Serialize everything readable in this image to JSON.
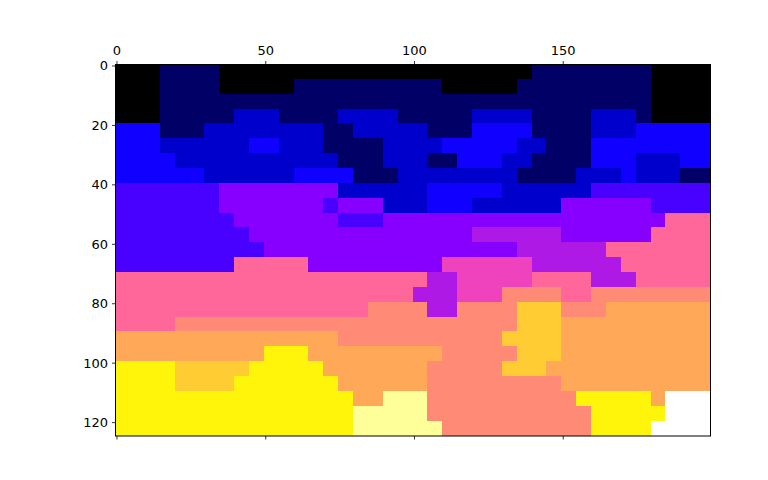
{
  "chart_data": {
    "type": "heatmap",
    "color": "gnuplot2",
    "xlim": [
      -0.5,
      199.5
    ],
    "ylim": [
      124.5,
      -0.5
    ],
    "xticks": [
      0,
      50,
      100,
      150
    ],
    "yticks": [
      0,
      20,
      40,
      60,
      80,
      100,
      120
    ],
    "color_range": [
      0,
      100
    ],
    "cells": [
      [
        0,
        0,
        0,
        10,
        10,
        10,
        10,
        0,
        0,
        0,
        0,
        0,
        0,
        0,
        0,
        0,
        0,
        0,
        0,
        0,
        0,
        0,
        0,
        0,
        0,
        0,
        0,
        0,
        10,
        10,
        10,
        10,
        10,
        10,
        10,
        10,
        0,
        0,
        0,
        0
      ],
      [
        0,
        0,
        0,
        10,
        10,
        10,
        10,
        0,
        0,
        0,
        0,
        0,
        10,
        10,
        10,
        10,
        10,
        10,
        10,
        10,
        10,
        10,
        0,
        0,
        0,
        0,
        0,
        10,
        10,
        10,
        10,
        10,
        10,
        10,
        10,
        10,
        0,
        0,
        0,
        0
      ],
      [
        0,
        0,
        0,
        10,
        10,
        10,
        10,
        10,
        10,
        10,
        10,
        10,
        10,
        10,
        10,
        10,
        10,
        10,
        10,
        10,
        10,
        10,
        10,
        10,
        10,
        10,
        10,
        10,
        10,
        10,
        10,
        10,
        10,
        10,
        10,
        10,
        0,
        0,
        0,
        0
      ],
      [
        0,
        0,
        0,
        10,
        10,
        10,
        10,
        10,
        20,
        20,
        20,
        10,
        10,
        10,
        10,
        20,
        20,
        20,
        20,
        10,
        10,
        10,
        10,
        10,
        20,
        20,
        20,
        20,
        10,
        10,
        10,
        10,
        20,
        20,
        20,
        10,
        0,
        0,
        0,
        0
      ],
      [
        27,
        27,
        27,
        10,
        10,
        10,
        20,
        20,
        20,
        20,
        20,
        20,
        20,
        20,
        10,
        10,
        20,
        20,
        20,
        20,
        20,
        10,
        10,
        10,
        27,
        27,
        27,
        27,
        10,
        10,
        10,
        10,
        20,
        20,
        20,
        27,
        27,
        27,
        27,
        27
      ],
      [
        27,
        27,
        27,
        20,
        20,
        20,
        20,
        20,
        20,
        27,
        27,
        20,
        20,
        20,
        10,
        10,
        10,
        10,
        20,
        20,
        20,
        20,
        27,
        27,
        27,
        27,
        27,
        20,
        20,
        10,
        10,
        10,
        27,
        27,
        27,
        27,
        27,
        27,
        27,
        27
      ],
      [
        27,
        27,
        27,
        27,
        20,
        20,
        20,
        20,
        20,
        20,
        20,
        20,
        20,
        20,
        20,
        10,
        10,
        10,
        20,
        20,
        20,
        10,
        10,
        27,
        27,
        27,
        20,
        20,
        10,
        10,
        10,
        10,
        27,
        27,
        27,
        20,
        20,
        20,
        27,
        27
      ],
      [
        27,
        27,
        27,
        27,
        27,
        27,
        20,
        20,
        20,
        20,
        20,
        20,
        27,
        27,
        27,
        27,
        10,
        10,
        10,
        20,
        20,
        20,
        20,
        20,
        20,
        20,
        20,
        10,
        10,
        10,
        10,
        20,
        20,
        20,
        27,
        20,
        20,
        20,
        10,
        10
      ],
      [
        34,
        34,
        34,
        34,
        34,
        34,
        34,
        42,
        42,
        42,
        42,
        42,
        42,
        42,
        42,
        20,
        20,
        20,
        20,
        20,
        20,
        27,
        27,
        27,
        27,
        27,
        20,
        20,
        20,
        20,
        20,
        20,
        34,
        34,
        34,
        34,
        34,
        34,
        34,
        34
      ],
      [
        34,
        34,
        34,
        34,
        34,
        34,
        34,
        42,
        42,
        42,
        42,
        42,
        42,
        42,
        34,
        42,
        42,
        42,
        20,
        20,
        20,
        27,
        27,
        27,
        20,
        20,
        20,
        20,
        20,
        20,
        42,
        42,
        42,
        42,
        42,
        42,
        34,
        34,
        34,
        34
      ],
      [
        34,
        34,
        34,
        34,
        34,
        34,
        34,
        34,
        42,
        42,
        42,
        42,
        42,
        42,
        42,
        34,
        34,
        34,
        42,
        42,
        42,
        42,
        42,
        42,
        42,
        42,
        42,
        42,
        42,
        42,
        42,
        42,
        42,
        42,
        42,
        42,
        42,
        62,
        62,
        62
      ],
      [
        34,
        34,
        34,
        34,
        34,
        34,
        34,
        34,
        34,
        42,
        42,
        42,
        42,
        42,
        42,
        42,
        42,
        42,
        42,
        42,
        42,
        42,
        42,
        42,
        47,
        47,
        47,
        47,
        47,
        47,
        42,
        42,
        42,
        42,
        42,
        42,
        62,
        62,
        62,
        62
      ],
      [
        34,
        34,
        34,
        34,
        34,
        34,
        34,
        34,
        34,
        34,
        42,
        42,
        42,
        42,
        42,
        42,
        42,
        42,
        42,
        42,
        42,
        42,
        42,
        42,
        42,
        42,
        42,
        47,
        47,
        47,
        47,
        47,
        47,
        62,
        62,
        62,
        62,
        62,
        62,
        62
      ],
      [
        34,
        34,
        34,
        34,
        34,
        34,
        34,
        34,
        62,
        62,
        62,
        62,
        62,
        42,
        42,
        42,
        42,
        42,
        42,
        42,
        42,
        42,
        55,
        55,
        55,
        55,
        55,
        55,
        47,
        47,
        47,
        47,
        47,
        47,
        62,
        62,
        62,
        62,
        62,
        62
      ],
      [
        62,
        62,
        62,
        62,
        62,
        62,
        62,
        62,
        62,
        62,
        62,
        62,
        62,
        62,
        62,
        62,
        62,
        62,
        62,
        62,
        62,
        47,
        47,
        55,
        55,
        55,
        55,
        55,
        62,
        62,
        62,
        62,
        47,
        47,
        47,
        62,
        62,
        62,
        62,
        62
      ],
      [
        62,
        62,
        62,
        62,
        62,
        62,
        62,
        62,
        62,
        62,
        62,
        62,
        62,
        62,
        62,
        62,
        62,
        62,
        62,
        62,
        47,
        47,
        47,
        55,
        55,
        55,
        69,
        69,
        69,
        69,
        62,
        62,
        69,
        69,
        69,
        69,
        69,
        69,
        69,
        69
      ],
      [
        62,
        62,
        62,
        62,
        62,
        62,
        62,
        62,
        62,
        62,
        62,
        62,
        62,
        62,
        62,
        62,
        62,
        69,
        69,
        69,
        69,
        47,
        47,
        69,
        69,
        69,
        69,
        82,
        82,
        82,
        69,
        69,
        69,
        75,
        75,
        75,
        75,
        75,
        75,
        75
      ],
      [
        62,
        62,
        62,
        62,
        69,
        69,
        69,
        69,
        69,
        69,
        69,
        69,
        69,
        69,
        69,
        69,
        69,
        69,
        69,
        69,
        69,
        69,
        69,
        69,
        69,
        69,
        69,
        82,
        82,
        82,
        75,
        75,
        75,
        75,
        75,
        75,
        75,
        75,
        75,
        75
      ],
      [
        75,
        75,
        75,
        75,
        75,
        75,
        75,
        75,
        75,
        75,
        75,
        75,
        75,
        75,
        75,
        69,
        69,
        69,
        69,
        69,
        69,
        69,
        69,
        69,
        69,
        69,
        82,
        82,
        82,
        82,
        75,
        75,
        75,
        75,
        75,
        75,
        75,
        75,
        75,
        75
      ],
      [
        75,
        75,
        75,
        75,
        75,
        75,
        75,
        75,
        75,
        75,
        90,
        90,
        90,
        75,
        75,
        75,
        75,
        75,
        75,
        75,
        75,
        75,
        69,
        69,
        69,
        69,
        69,
        82,
        82,
        82,
        75,
        75,
        75,
        75,
        75,
        75,
        75,
        75,
        75,
        75
      ],
      [
        90,
        90,
        90,
        90,
        82,
        82,
        82,
        82,
        82,
        90,
        90,
        90,
        90,
        90,
        75,
        75,
        75,
        75,
        75,
        75,
        75,
        69,
        69,
        69,
        69,
        69,
        82,
        82,
        82,
        75,
        75,
        75,
        75,
        75,
        75,
        75,
        75,
        75,
        75,
        75
      ],
      [
        90,
        90,
        90,
        90,
        82,
        82,
        82,
        82,
        90,
        90,
        90,
        90,
        90,
        90,
        90,
        75,
        75,
        75,
        75,
        75,
        75,
        69,
        69,
        69,
        69,
        69,
        69,
        69,
        69,
        69,
        75,
        75,
        75,
        75,
        75,
        75,
        75,
        75,
        75,
        75
      ],
      [
        90,
        90,
        90,
        90,
        90,
        90,
        90,
        90,
        90,
        90,
        90,
        90,
        90,
        90,
        90,
        90,
        75,
        75,
        95,
        95,
        95,
        69,
        69,
        69,
        69,
        69,
        69,
        69,
        69,
        69,
        69,
        90,
        90,
        90,
        90,
        90,
        75,
        100,
        100,
        100
      ],
      [
        90,
        90,
        90,
        90,
        90,
        90,
        90,
        90,
        90,
        90,
        90,
        90,
        90,
        90,
        90,
        90,
        95,
        95,
        95,
        95,
        95,
        69,
        69,
        69,
        69,
        69,
        69,
        69,
        69,
        69,
        69,
        69,
        90,
        90,
        90,
        90,
        90,
        100,
        100,
        100
      ],
      [
        90,
        90,
        90,
        90,
        90,
        90,
        90,
        90,
        90,
        90,
        90,
        90,
        90,
        90,
        90,
        90,
        95,
        95,
        95,
        95,
        95,
        95,
        69,
        69,
        69,
        69,
        69,
        69,
        69,
        69,
        69,
        69,
        90,
        90,
        90,
        90,
        100,
        100,
        100,
        100
      ]
    ]
  }
}
